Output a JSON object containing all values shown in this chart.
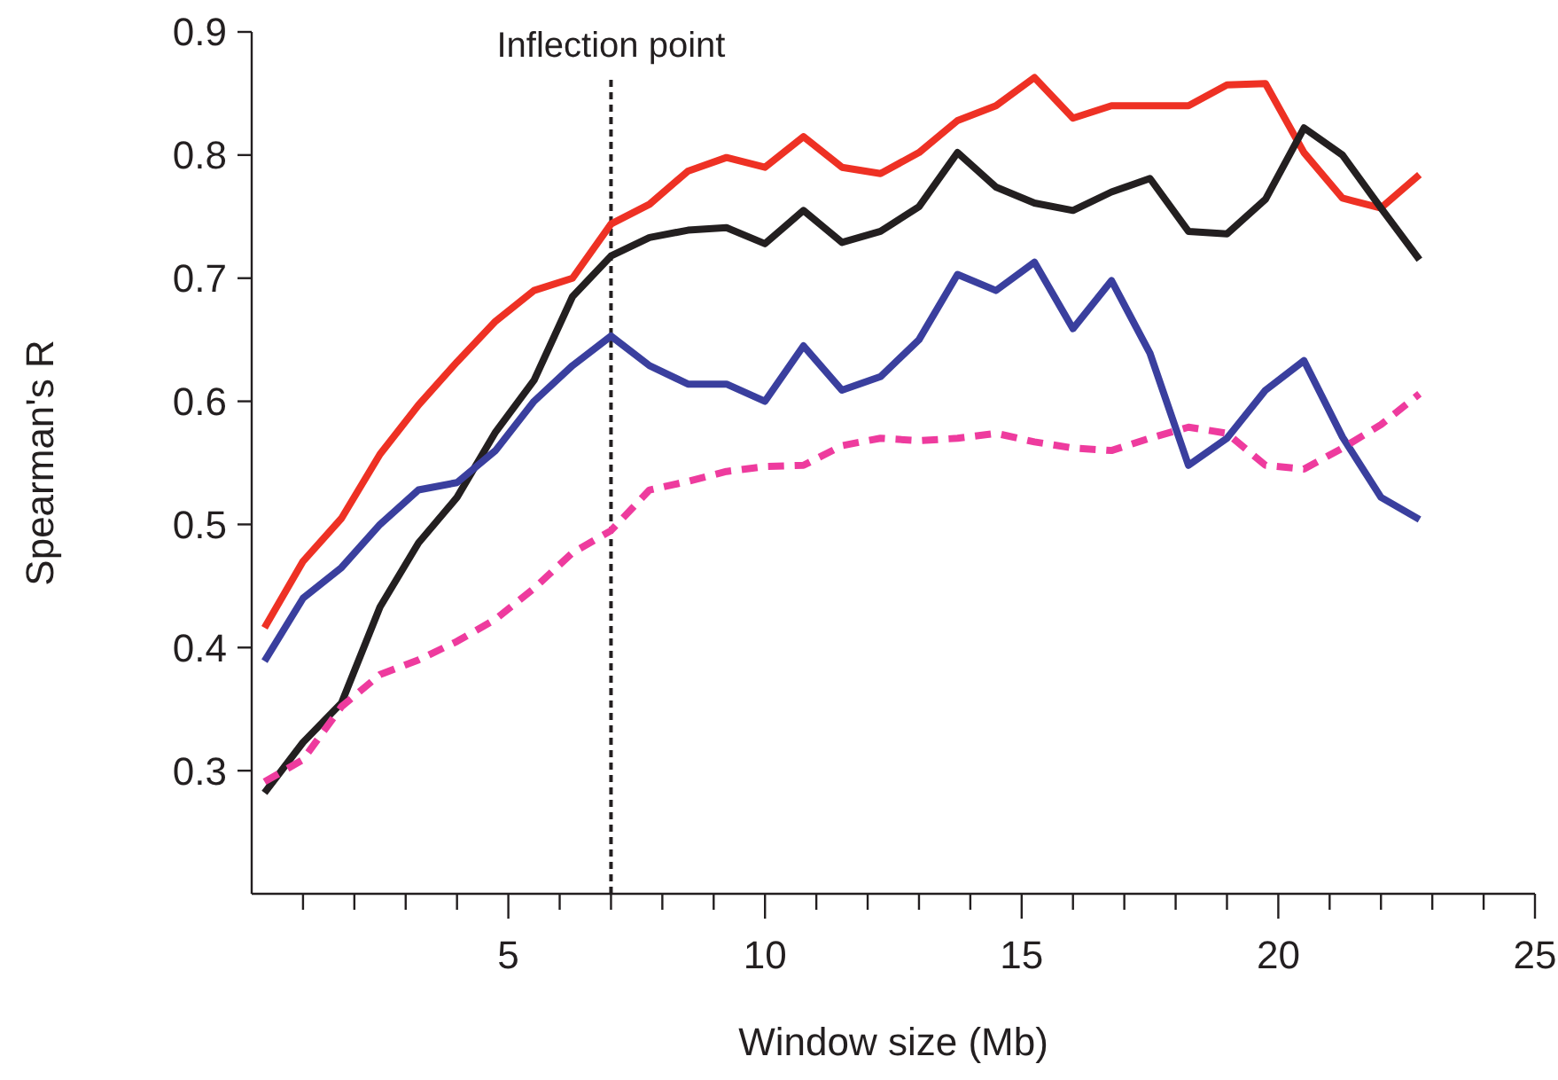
{
  "chart_data": {
    "type": "line",
    "xlabel": "Window size (Mb)",
    "ylabel": "Spearman's R",
    "x": [
      0.25,
      1,
      1.75,
      2.5,
      3.25,
      4,
      4.75,
      5.5,
      6.25,
      7,
      7.75,
      8.5,
      9.25,
      10,
      10.75,
      11.5,
      12.25,
      13,
      13.75,
      14.5,
      15.25,
      16,
      16.75,
      17.5,
      18.25,
      19,
      19.75,
      20.5,
      21.25,
      22,
      22.75
    ],
    "xlim": [
      0,
      25
    ],
    "ylim": [
      0.2,
      0.9
    ],
    "xticks": [
      {
        "value": 1,
        "label": null
      },
      {
        "value": 2,
        "label": null
      },
      {
        "value": 3,
        "label": null
      },
      {
        "value": 4,
        "label": null
      },
      5,
      {
        "value": 6,
        "label": null
      },
      {
        "value": 7,
        "label": null
      },
      {
        "value": 8,
        "label": null
      },
      {
        "value": 9,
        "label": null
      },
      10,
      {
        "value": 11,
        "label": null
      },
      {
        "value": 12,
        "label": null
      },
      {
        "value": 13,
        "label": null
      },
      {
        "value": 14,
        "label": null
      },
      15,
      {
        "value": 16,
        "label": null
      },
      {
        "value": 17,
        "label": null
      },
      {
        "value": 18,
        "label": null
      },
      {
        "value": 19,
        "label": null
      },
      20,
      {
        "value": 21,
        "label": null
      },
      {
        "value": 22,
        "label": null
      },
      {
        "value": 23,
        "label": null
      },
      {
        "value": 24,
        "label": null
      },
      25
    ],
    "yticks": [
      0.3,
      0.4,
      0.5,
      0.6,
      0.7,
      0.8,
      0.9
    ],
    "grid": false,
    "marker": "none",
    "ref_lines": [
      {
        "axis": "x",
        "value": 7,
        "label": "Inflection point",
        "color": "#231f20",
        "line_style": "dashed"
      }
    ],
    "series": [
      {
        "color": "#ee3124",
        "line_style": "solid",
        "values": [
          0.416,
          0.47,
          0.505,
          0.557,
          0.597,
          0.632,
          0.665,
          0.69,
          0.7,
          0.744,
          0.76,
          0.787,
          0.798,
          0.79,
          0.815,
          0.79,
          0.785,
          0.802,
          0.828,
          0.84,
          0.863,
          0.83,
          0.84,
          0.84,
          0.84,
          0.857,
          0.858,
          0.802,
          0.765,
          0.757,
          0.784
        ]
      },
      {
        "color": "#231f20",
        "line_style": "solid",
        "values": [
          0.282,
          0.323,
          0.355,
          0.433,
          0.485,
          0.522,
          0.575,
          0.617,
          0.685,
          0.718,
          0.733,
          0.739,
          0.741,
          0.728,
          0.755,
          0.729,
          0.738,
          0.758,
          0.802,
          0.774,
          0.761,
          0.755,
          0.77,
          0.781,
          0.738,
          0.736,
          0.764,
          0.822,
          0.8,
          0.757,
          0.715
        ]
      },
      {
        "color": "#3a3f9e",
        "line_style": "solid",
        "values": [
          0.389,
          0.44,
          0.465,
          0.5,
          0.528,
          0.534,
          0.56,
          0.6,
          0.629,
          0.653,
          0.629,
          0.614,
          0.614,
          0.6,
          0.645,
          0.609,
          0.62,
          0.65,
          0.703,
          0.69,
          0.713,
          0.659,
          0.698,
          0.639,
          0.548,
          0.57,
          0.609,
          0.633,
          0.571,
          0.522,
          0.504
        ]
      },
      {
        "color": "#ee3b9e",
        "line_style": "dashed",
        "values": [
          0.291,
          0.309,
          0.352,
          0.378,
          0.39,
          0.405,
          0.423,
          0.448,
          0.477,
          0.495,
          0.528,
          0.535,
          0.543,
          0.547,
          0.548,
          0.564,
          0.57,
          0.568,
          0.57,
          0.574,
          0.567,
          0.562,
          0.56,
          0.57,
          0.579,
          0.574,
          0.548,
          0.545,
          0.562,
          0.581,
          0.606
        ]
      }
    ]
  }
}
